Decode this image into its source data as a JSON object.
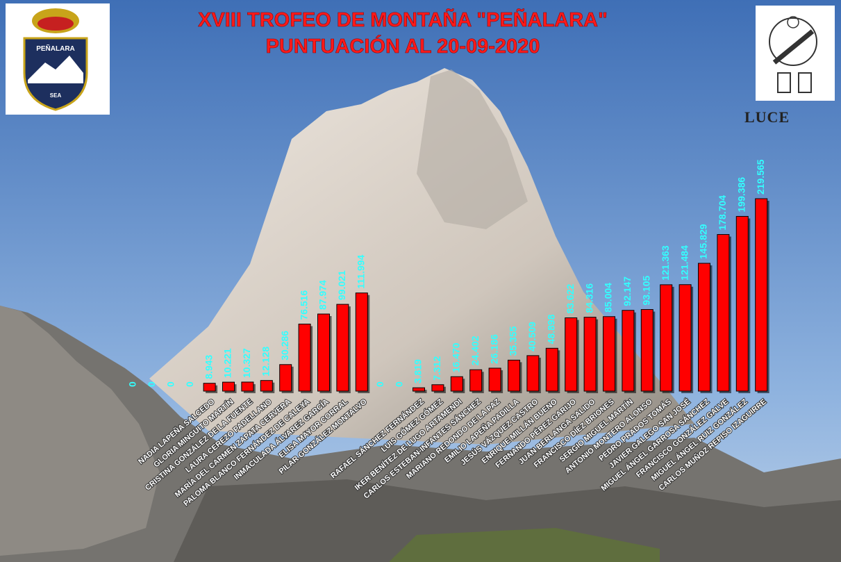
{
  "chart_data": {
    "type": "bar",
    "title": "XVIII TROFEO DE MONTAÑA \"PEÑALARA\"",
    "subtitle": "PUNTUACIÓN AL 20-09-2020",
    "categories": [
      null,
      null,
      null,
      null,
      "NADIA LAPEÑA SALCEDO",
      "GLORIA MINGUITO MARTÍN",
      "CRISTINA GONZÁLEZ DE LA FUENTE",
      "LAURA CEREZO PADELLANO",
      "MARÍA DEL CARMEN ZAPATA CERVERA",
      "PALOMA BLANCO FERNÁNDEZ DE CALEYA",
      "INMACULADA ÁLVAREZ GARCÍA",
      "ELISA MAYOR CORRAL",
      "PILAR GONZÁLEZ MONTALVO",
      null,
      null,
      "RAFAEL SÁNCHEZ FERNÁNDEZ",
      "LUIS GÓMEZ GÓMEZ",
      "IKER BENÍTEZ DE LUGO ARTAMENDI",
      "CARLOS ESTEBAN-INFANTES SÁNCHEZ",
      "MARIANO REDONDO DE LA PAZ",
      "EMILIO LAPEÑA PADILLA",
      "JESÚS VÁZQUEZ CASTRO",
      "ENRIQUE MILLÁN BUENO",
      "FERNANDO PÉREZ GARIJO",
      "JUAN BERLANGA SALIDO",
      "FRANCISCO DÍEZ BRIONES",
      "SERGIO MIGUEL MARTÍN",
      "ANTONIO MONTERO ALONSO",
      "PEDRO PRADOS TOMÁS",
      "JAVIER GALEGO SAN JOSÉ",
      "MIGUEL ÁNGEL GARROSA SÁNCHEZ",
      "FRANCISCO GONZÁLEZ GALVE",
      "MIGUEL ÁNGEL RUIZ GONZÁLEZ",
      "CARLOS MUÑOZ REPISO IZAGUIRRE"
    ],
    "values": [
      0,
      0,
      0,
      0,
      8.943,
      10.221,
      10.327,
      12.128,
      30.286,
      76.516,
      87.974,
      99.021,
      111.994,
      0,
      0,
      3.819,
      7.312,
      16.47,
      24.402,
      26.186,
      35.355,
      40.509,
      48.898,
      83.622,
      84.316,
      85.004,
      92.147,
      93.105,
      121.363,
      121.484,
      145.829,
      178.704,
      199.386,
      219.565
    ],
    "value_labels": [
      "0",
      "0",
      "0",
      "0",
      "8.943",
      "10.221",
      "10.327",
      "12.128",
      "30.286",
      "76.516",
      "87.974",
      "99.021",
      "111.994",
      "0",
      "0",
      "3.819",
      "7.312",
      "16.470",
      "24.402",
      "26.186",
      "35.355",
      "40.509",
      "48.898",
      "83.622",
      "84.316",
      "85.004",
      "92.147",
      "93.105",
      "121.363",
      "121.484",
      "145.829",
      "178.704",
      "199.386",
      "219.565"
    ],
    "color": "#ff0000"
  },
  "logos": {
    "left": "PEÑALARA",
    "left_badge": "SEA",
    "right": "LUCE"
  }
}
